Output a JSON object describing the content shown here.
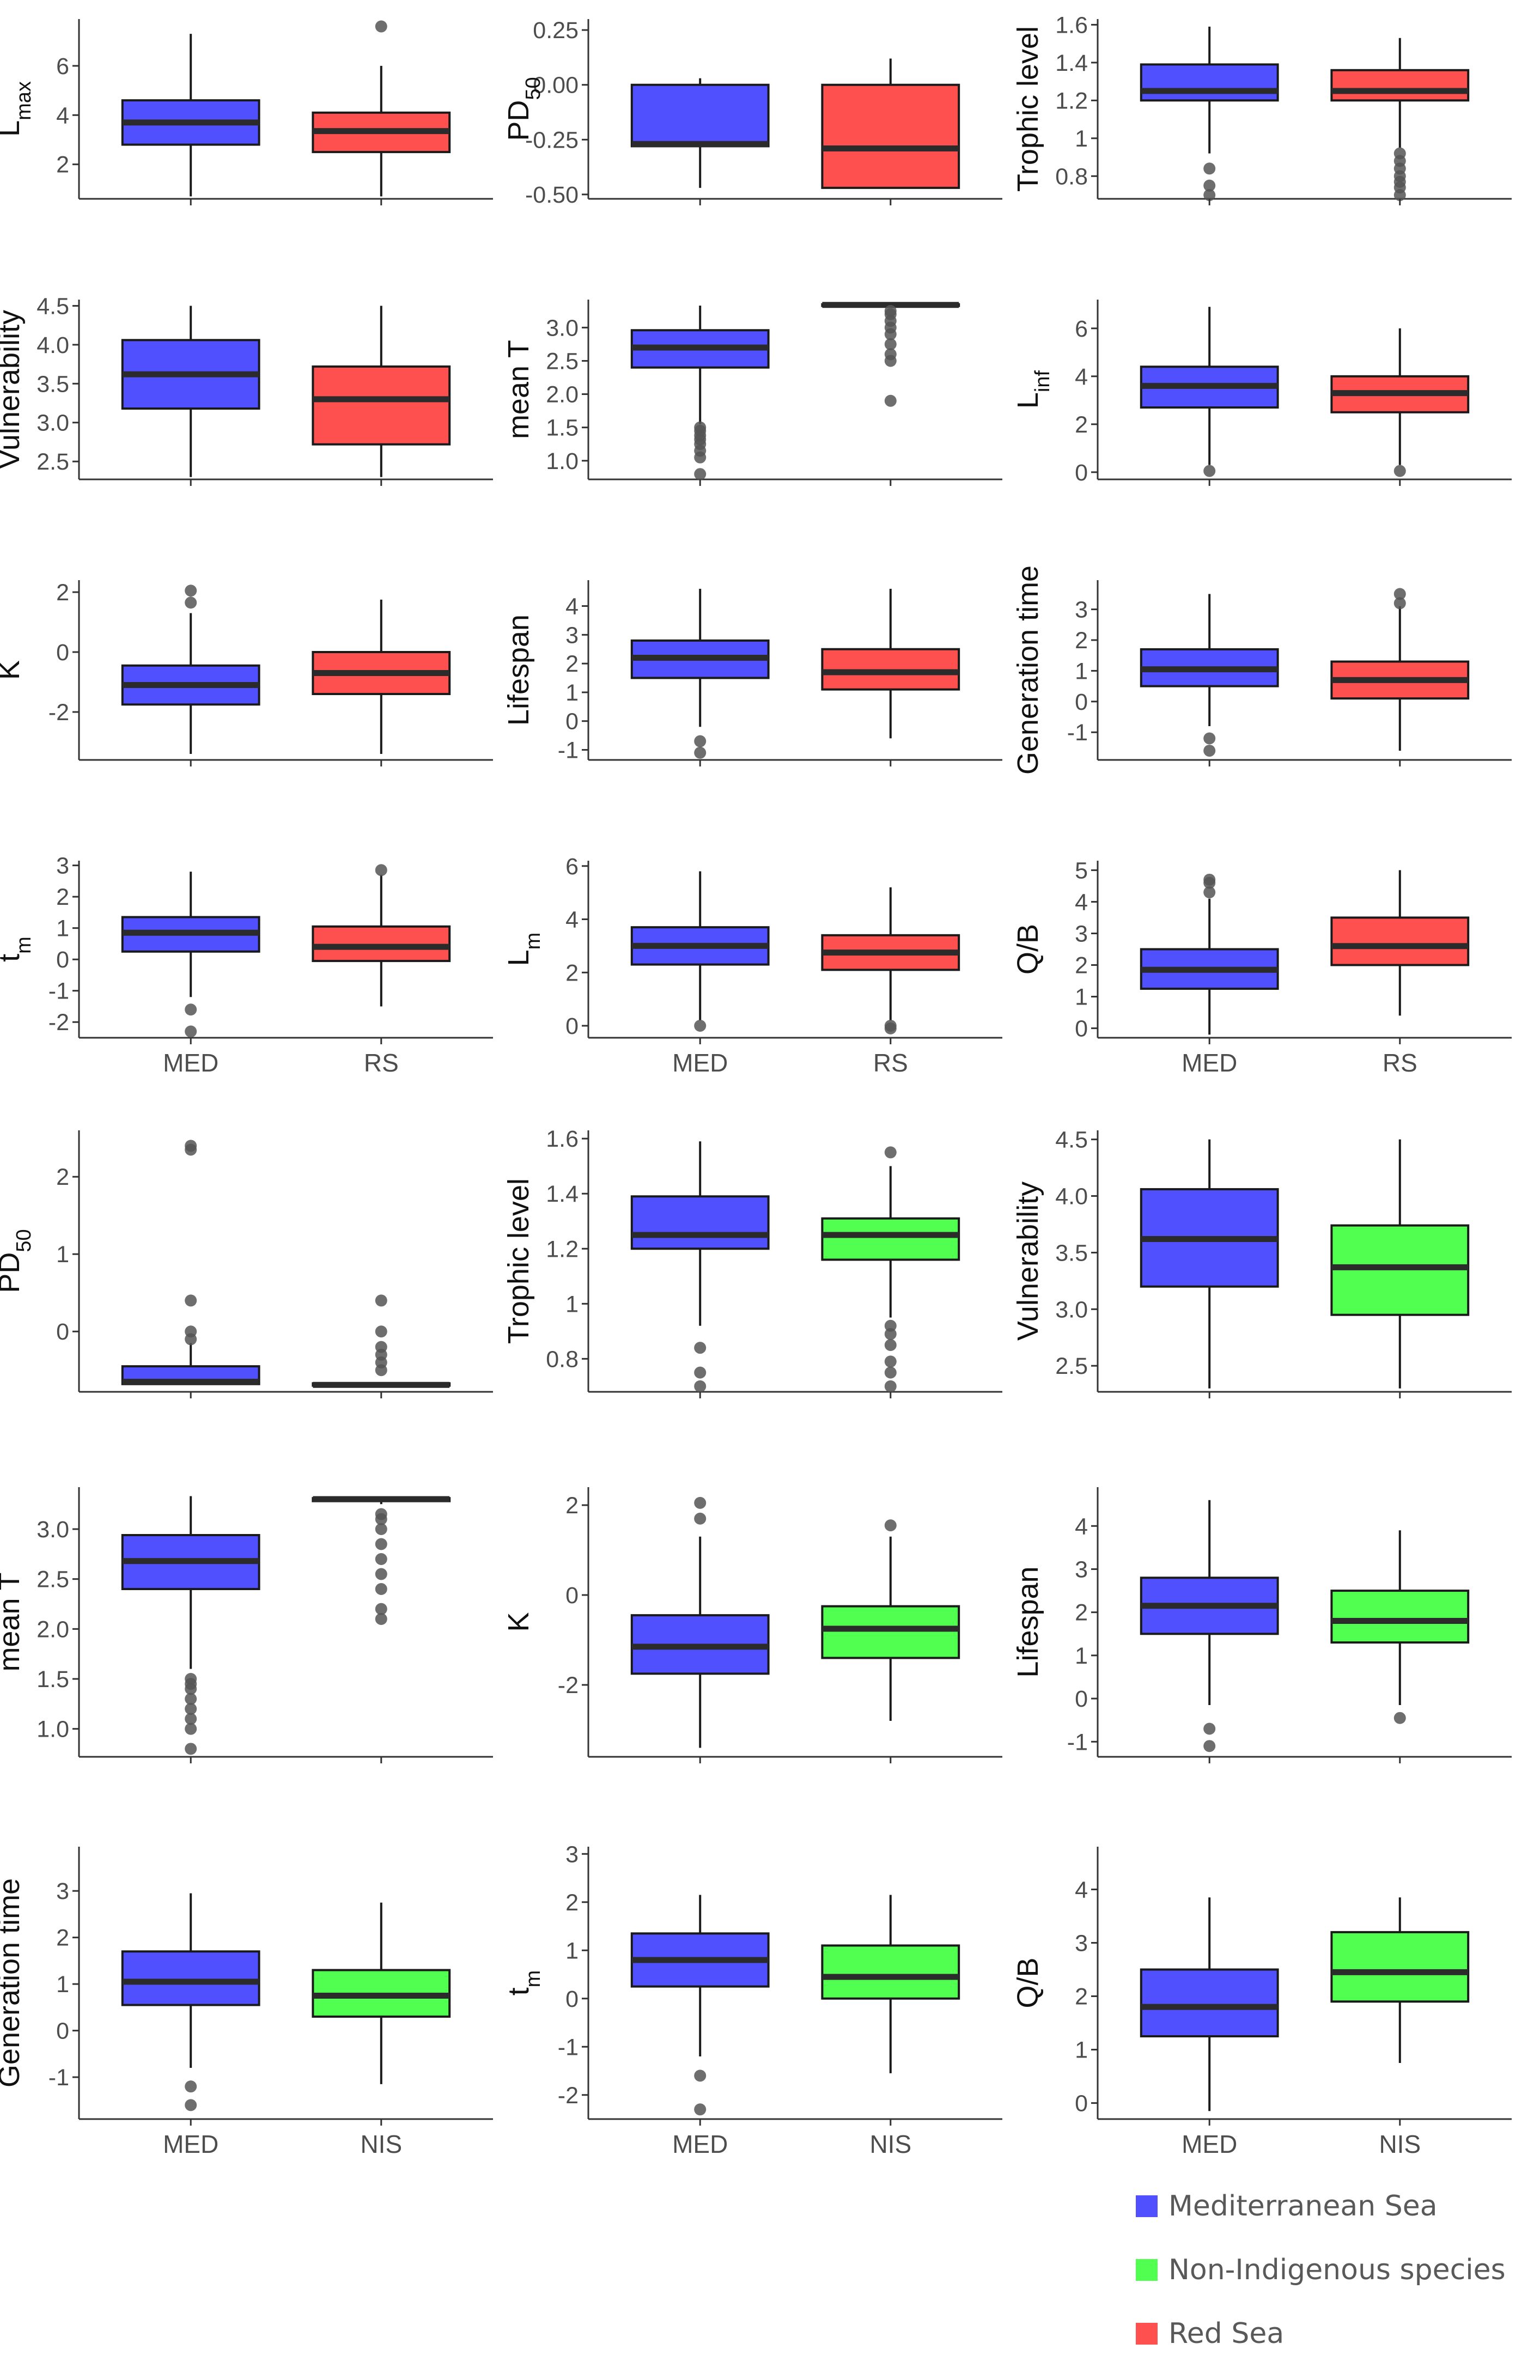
{
  "colors": {
    "med": "#5050ff",
    "rs": "#ff5050",
    "nis": "#50ff50",
    "outline": "#1a1a1a",
    "axis": "#333333",
    "tick_text": "#4d4d4d",
    "outlier": "#555555"
  },
  "legend": [
    {
      "label": "Mediterranean Sea",
      "color": "#5050ff"
    },
    {
      "label": "Non-Indigenous species",
      "color": "#50ff50"
    },
    {
      "label": "Red Sea",
      "color": "#ff5050"
    }
  ],
  "chart_data": [
    {
      "type": "box",
      "ylabel": "L",
      "ylabel_sub": "max",
      "ylim": [
        0.6,
        7.9
      ],
      "yticks": [
        2,
        4,
        6
      ],
      "categories": [
        "MED",
        "RS"
      ],
      "show_xlabels": false,
      "boxes": [
        {
          "cat": "MED",
          "group": "med",
          "min": 0.7,
          "q1": 2.8,
          "median": 3.7,
          "q3": 4.6,
          "max": 7.3,
          "outliers": []
        },
        {
          "cat": "RS",
          "group": "rs",
          "min": 0.7,
          "q1": 2.5,
          "median": 3.35,
          "q3": 4.1,
          "max": 6.0,
          "outliers": [
            7.6
          ]
        }
      ]
    },
    {
      "type": "box",
      "ylabel": "PD",
      "ylabel_sub": "50",
      "ylim": [
        -0.52,
        0.3
      ],
      "yticks": [
        0.25,
        0.0,
        -0.25,
        -0.5
      ],
      "ytick_labels": [
        "0.25",
        "0.00",
        "-0.25",
        "-0.50"
      ],
      "categories": [
        "MED",
        "RS"
      ],
      "show_xlabels": false,
      "boxes": [
        {
          "cat": "MED",
          "group": "med",
          "min": -0.47,
          "q1": -0.28,
          "median": -0.27,
          "q3": 0.0,
          "max": 0.03,
          "outliers": []
        },
        {
          "cat": "RS",
          "group": "rs",
          "min": -0.47,
          "q1": -0.47,
          "median": -0.29,
          "q3": 0.0,
          "max": 0.12,
          "outliers": []
        }
      ]
    },
    {
      "type": "box",
      "ylabel": "Trophic level",
      "ylim": [
        0.68,
        1.63
      ],
      "yticks": [
        0.8,
        1.0,
        1.2,
        1.4,
        1.6
      ],
      "categories": [
        "MED",
        "RS"
      ],
      "show_xlabels": false,
      "boxes": [
        {
          "cat": "MED",
          "group": "med",
          "min": 0.92,
          "q1": 1.2,
          "median": 1.25,
          "q3": 1.39,
          "max": 1.59,
          "outliers": [
            0.7,
            0.75,
            0.84
          ]
        },
        {
          "cat": "RS",
          "group": "rs",
          "min": 0.95,
          "q1": 1.2,
          "median": 1.25,
          "q3": 1.36,
          "max": 1.53,
          "outliers": [
            0.7,
            0.74,
            0.77,
            0.8,
            0.84,
            0.88,
            0.92
          ]
        }
      ]
    },
    {
      "type": "box",
      "ylabel": "Vulnerability",
      "ylim": [
        2.27,
        4.58
      ],
      "yticks": [
        2.5,
        3.0,
        3.5,
        4.0,
        4.5
      ],
      "ytick_labels": [
        "2.5",
        "3.0",
        "3.5",
        "4.0",
        "4.5"
      ],
      "categories": [
        "MED",
        "RS"
      ],
      "show_xlabels": false,
      "boxes": [
        {
          "cat": "MED",
          "group": "med",
          "min": 2.3,
          "q1": 3.18,
          "median": 3.62,
          "q3": 4.06,
          "max": 4.5,
          "outliers": []
        },
        {
          "cat": "RS",
          "group": "rs",
          "min": 2.3,
          "q1": 2.72,
          "median": 3.3,
          "q3": 3.72,
          "max": 4.5,
          "outliers": []
        }
      ]
    },
    {
      "type": "box",
      "ylabel": "mean T",
      "ylim": [
        0.72,
        3.42
      ],
      "yticks": [
        1.0,
        1.5,
        2.0,
        2.5,
        3.0
      ],
      "ytick_labels": [
        "1.0",
        "1.5",
        "2.0",
        "2.5",
        "3.0"
      ],
      "categories": [
        "MED",
        "RS"
      ],
      "show_xlabels": false,
      "boxes": [
        {
          "cat": "MED",
          "group": "med",
          "min": 1.55,
          "q1": 2.4,
          "median": 2.7,
          "q3": 2.96,
          "max": 3.33,
          "outliers": [
            0.8,
            1.05,
            1.15,
            1.25,
            1.32,
            1.38,
            1.45,
            1.5
          ]
        },
        {
          "cat": "RS",
          "group": "rs",
          "min": 3.3,
          "q1": 3.33,
          "median": 3.34,
          "q3": 3.35,
          "max": 3.37,
          "outliers": [
            1.9,
            2.5,
            2.6,
            2.75,
            2.9,
            3.0,
            3.1,
            3.2,
            3.25
          ]
        }
      ]
    },
    {
      "type": "box",
      "ylabel": "L",
      "ylabel_sub": "inf",
      "ylim": [
        -0.3,
        7.2
      ],
      "yticks": [
        0,
        2,
        4,
        6
      ],
      "categories": [
        "MED",
        "RS"
      ],
      "show_xlabels": false,
      "boxes": [
        {
          "cat": "MED",
          "group": "med",
          "min": 0.3,
          "q1": 2.7,
          "median": 3.6,
          "q3": 4.4,
          "max": 6.9,
          "outliers": [
            0.05
          ]
        },
        {
          "cat": "RS",
          "group": "rs",
          "min": 0.3,
          "q1": 2.5,
          "median": 3.3,
          "q3": 4.0,
          "max": 6.0,
          "outliers": [
            0.05
          ]
        }
      ]
    },
    {
      "type": "box",
      "ylabel": "K",
      "ylim": [
        -3.6,
        2.4
      ],
      "yticks": [
        -2,
        0,
        2
      ],
      "categories": [
        "MED",
        "RS"
      ],
      "show_xlabels": false,
      "boxes": [
        {
          "cat": "MED",
          "group": "med",
          "min": -3.4,
          "q1": -1.75,
          "median": -1.1,
          "q3": -0.45,
          "max": 1.3,
          "outliers": [
            1.65,
            2.05
          ]
        },
        {
          "cat": "RS",
          "group": "rs",
          "min": -3.4,
          "q1": -1.4,
          "median": -0.7,
          "q3": 0.0,
          "max": 1.75,
          "outliers": []
        }
      ]
    },
    {
      "type": "box",
      "ylabel": "Lifespan",
      "ylim": [
        -1.35,
        4.9
      ],
      "yticks": [
        -1,
        0,
        1,
        2,
        3,
        4
      ],
      "categories": [
        "MED",
        "RS"
      ],
      "show_xlabels": false,
      "boxes": [
        {
          "cat": "MED",
          "group": "med",
          "min": -0.2,
          "q1": 1.5,
          "median": 2.2,
          "q3": 2.8,
          "max": 4.6,
          "outliers": [
            -0.7,
            -1.1
          ]
        },
        {
          "cat": "RS",
          "group": "rs",
          "min": -0.6,
          "q1": 1.1,
          "median": 1.7,
          "q3": 2.5,
          "max": 4.6,
          "outliers": []
        }
      ]
    },
    {
      "type": "box",
      "ylabel": "Generation time",
      "ylim": [
        -1.9,
        3.95
      ],
      "yticks": [
        -1,
        0,
        1,
        2,
        3
      ],
      "categories": [
        "MED",
        "RS"
      ],
      "show_xlabels": false,
      "boxes": [
        {
          "cat": "MED",
          "group": "med",
          "min": -0.8,
          "q1": 0.5,
          "median": 1.05,
          "q3": 1.7,
          "max": 3.5,
          "outliers": [
            -1.2,
            -1.6
          ]
        },
        {
          "cat": "RS",
          "group": "rs",
          "min": -1.6,
          "q1": 0.1,
          "median": 0.7,
          "q3": 1.3,
          "max": 3.1,
          "outliers": [
            3.2,
            3.5
          ]
        }
      ]
    },
    {
      "type": "box",
      "ylabel": "t",
      "ylabel_sub": "m",
      "ylim": [
        -2.5,
        3.15
      ],
      "yticks": [
        -2,
        -1,
        0,
        1,
        2,
        3
      ],
      "categories": [
        "MED",
        "RS"
      ],
      "show_xlabels": true,
      "boxes": [
        {
          "cat": "MED",
          "group": "med",
          "min": -1.2,
          "q1": 0.25,
          "median": 0.85,
          "q3": 1.35,
          "max": 2.8,
          "outliers": [
            -1.6,
            -2.3
          ]
        },
        {
          "cat": "RS",
          "group": "rs",
          "min": -1.5,
          "q1": -0.05,
          "median": 0.4,
          "q3": 1.05,
          "max": 2.7,
          "outliers": [
            2.85
          ]
        }
      ]
    },
    {
      "type": "box",
      "ylabel": "L",
      "ylabel_sub": "m",
      "ylim": [
        -0.45,
        6.2
      ],
      "yticks": [
        0,
        2,
        4,
        6
      ],
      "categories": [
        "MED",
        "RS"
      ],
      "show_xlabels": true,
      "boxes": [
        {
          "cat": "MED",
          "group": "med",
          "min": 0.2,
          "q1": 2.3,
          "median": 3.0,
          "q3": 3.7,
          "max": 5.8,
          "outliers": [
            0.0
          ]
        },
        {
          "cat": "RS",
          "group": "rs",
          "min": 0.2,
          "q1": 2.1,
          "median": 2.75,
          "q3": 3.4,
          "max": 5.2,
          "outliers": [
            -0.1,
            0.0
          ]
        }
      ]
    },
    {
      "type": "box",
      "ylabel": "Q/B",
      "ylim": [
        -0.3,
        5.3
      ],
      "yticks": [
        0,
        1,
        2,
        3,
        4,
        5
      ],
      "categories": [
        "MED",
        "RS"
      ],
      "show_xlabels": true,
      "boxes": [
        {
          "cat": "MED",
          "group": "med",
          "min": -0.2,
          "q1": 1.25,
          "median": 1.85,
          "q3": 2.5,
          "max": 4.1,
          "outliers": [
            4.3,
            4.6,
            4.7
          ]
        },
        {
          "cat": "RS",
          "group": "rs",
          "min": 0.4,
          "q1": 2.0,
          "median": 2.6,
          "q3": 3.5,
          "max": 5.0,
          "outliers": []
        }
      ]
    },
    {
      "type": "box",
      "ylabel": "PD",
      "ylabel_sub": "50",
      "ylim": [
        -0.78,
        2.6
      ],
      "yticks": [
        0,
        1,
        2
      ],
      "categories": [
        "MED",
        "NIS"
      ],
      "show_xlabels": false,
      "boxes": [
        {
          "cat": "MED",
          "group": "med",
          "min": -0.68,
          "q1": -0.68,
          "median": -0.65,
          "q3": -0.45,
          "max": -0.15,
          "outliers": [
            -0.1,
            0.0,
            0.4,
            2.35,
            2.4
          ]
        },
        {
          "cat": "NIS",
          "group": "nis",
          "min": -0.7,
          "q1": -0.7,
          "median": -0.69,
          "q3": -0.67,
          "max": -0.66,
          "outliers": [
            -0.5,
            -0.4,
            -0.3,
            -0.2,
            0.0,
            0.4
          ]
        }
      ]
    },
    {
      "type": "box",
      "ylabel": "Trophic level",
      "ylim": [
        0.68,
        1.63
      ],
      "yticks": [
        0.8,
        1.0,
        1.2,
        1.4,
        1.6
      ],
      "categories": [
        "MED",
        "NIS"
      ],
      "show_xlabels": false,
      "boxes": [
        {
          "cat": "MED",
          "group": "med",
          "min": 0.92,
          "q1": 1.2,
          "median": 1.25,
          "q3": 1.39,
          "max": 1.59,
          "outliers": [
            0.7,
            0.75,
            0.84
          ]
        },
        {
          "cat": "NIS",
          "group": "nis",
          "min": 0.95,
          "q1": 1.16,
          "median": 1.25,
          "q3": 1.31,
          "max": 1.5,
          "outliers": [
            0.7,
            0.75,
            0.79,
            0.85,
            0.89,
            0.92,
            1.55
          ]
        }
      ]
    },
    {
      "type": "box",
      "ylabel": "Vulnerability",
      "ylim": [
        2.27,
        4.58
      ],
      "yticks": [
        2.5,
        3.0,
        3.5,
        4.0,
        4.5
      ],
      "ytick_labels": [
        "2.5",
        "3.0",
        "3.5",
        "4.0",
        "4.5"
      ],
      "categories": [
        "MED",
        "NIS"
      ],
      "show_xlabels": false,
      "boxes": [
        {
          "cat": "MED",
          "group": "med",
          "min": 2.3,
          "q1": 3.2,
          "median": 3.62,
          "q3": 4.06,
          "max": 4.5,
          "outliers": []
        },
        {
          "cat": "NIS",
          "group": "nis",
          "min": 2.3,
          "q1": 2.95,
          "median": 3.37,
          "q3": 3.74,
          "max": 4.5,
          "outliers": []
        }
      ]
    },
    {
      "type": "box",
      "ylabel": "mean T",
      "ylim": [
        0.72,
        3.42
      ],
      "yticks": [
        1.0,
        1.5,
        2.0,
        2.5,
        3.0
      ],
      "ytick_labels": [
        "1.0",
        "1.5",
        "2.0",
        "2.5",
        "3.0"
      ],
      "categories": [
        "MED",
        "NIS"
      ],
      "show_xlabels": false,
      "boxes": [
        {
          "cat": "MED",
          "group": "med",
          "min": 1.6,
          "q1": 2.4,
          "median": 2.68,
          "q3": 2.94,
          "max": 3.33,
          "outliers": [
            0.8,
            1.0,
            1.1,
            1.2,
            1.3,
            1.4,
            1.45,
            1.5
          ]
        },
        {
          "cat": "NIS",
          "group": "nis",
          "min": 3.25,
          "q1": 3.28,
          "median": 3.3,
          "q3": 3.31,
          "max": 3.33,
          "outliers": [
            2.1,
            2.2,
            2.4,
            2.55,
            2.7,
            2.85,
            3.0,
            3.1,
            3.15
          ]
        }
      ]
    },
    {
      "type": "box",
      "ylabel": "K",
      "ylim": [
        -3.6,
        2.4
      ],
      "yticks": [
        -2,
        0,
        2
      ],
      "categories": [
        "MED",
        "NIS"
      ],
      "show_xlabels": false,
      "boxes": [
        {
          "cat": "MED",
          "group": "med",
          "min": -3.4,
          "q1": -1.75,
          "median": -1.15,
          "q3": -0.45,
          "max": 1.3,
          "outliers": [
            1.7,
            2.05
          ]
        },
        {
          "cat": "NIS",
          "group": "nis",
          "min": -2.8,
          "q1": -1.4,
          "median": -0.75,
          "q3": -0.25,
          "max": 1.3,
          "outliers": [
            1.55
          ]
        }
      ]
    },
    {
      "type": "box",
      "ylabel": "Lifespan",
      "ylim": [
        -1.35,
        4.9
      ],
      "yticks": [
        -1,
        0,
        1,
        2,
        3,
        4
      ],
      "categories": [
        "MED",
        "NIS"
      ],
      "show_xlabels": false,
      "boxes": [
        {
          "cat": "MED",
          "group": "med",
          "min": -0.15,
          "q1": 1.5,
          "median": 2.15,
          "q3": 2.8,
          "max": 4.6,
          "outliers": [
            -0.7,
            -1.1
          ]
        },
        {
          "cat": "NIS",
          "group": "nis",
          "min": -0.15,
          "q1": 1.3,
          "median": 1.8,
          "q3": 2.5,
          "max": 3.9,
          "outliers": [
            -0.45
          ]
        }
      ]
    },
    {
      "type": "box",
      "ylabel": "Generation time",
      "ylim": [
        -1.9,
        3.95
      ],
      "yticks": [
        -1,
        0,
        1,
        2,
        3
      ],
      "categories": [
        "MED",
        "NIS"
      ],
      "show_xlabels": true,
      "boxes": [
        {
          "cat": "MED",
          "group": "med",
          "min": -0.8,
          "q1": 0.55,
          "median": 1.05,
          "q3": 1.7,
          "max": 2.95,
          "outliers": [
            -1.2,
            -1.6
          ]
        },
        {
          "cat": "NIS",
          "group": "nis",
          "min": -1.15,
          "q1": 0.3,
          "median": 0.75,
          "q3": 1.3,
          "max": 2.75,
          "outliers": []
        }
      ]
    },
    {
      "type": "box",
      "ylabel": "t",
      "ylabel_sub": "m",
      "ylim": [
        -2.5,
        3.15
      ],
      "yticks": [
        -2,
        -1,
        0,
        1,
        2,
        3
      ],
      "categories": [
        "MED",
        "NIS"
      ],
      "show_xlabels": true,
      "boxes": [
        {
          "cat": "MED",
          "group": "med",
          "min": -1.2,
          "q1": 0.25,
          "median": 0.8,
          "q3": 1.35,
          "max": 2.15,
          "outliers": [
            -1.6,
            -2.3
          ]
        },
        {
          "cat": "NIS",
          "group": "nis",
          "min": -1.55,
          "q1": 0.0,
          "median": 0.45,
          "q3": 1.1,
          "max": 2.15,
          "outliers": []
        }
      ]
    },
    {
      "type": "box",
      "ylabel": "Q/B",
      "ylim": [
        -0.3,
        4.8
      ],
      "yticks": [
        0,
        1,
        2,
        3,
        4
      ],
      "categories": [
        "MED",
        "NIS"
      ],
      "show_xlabels": true,
      "boxes": [
        {
          "cat": "MED",
          "group": "med",
          "min": -0.15,
          "q1": 1.25,
          "median": 1.8,
          "q3": 2.5,
          "max": 3.85,
          "outliers": []
        },
        {
          "cat": "NIS",
          "group": "nis",
          "min": 0.75,
          "q1": 1.9,
          "median": 2.45,
          "q3": 3.2,
          "max": 3.85,
          "outliers": []
        }
      ]
    }
  ]
}
